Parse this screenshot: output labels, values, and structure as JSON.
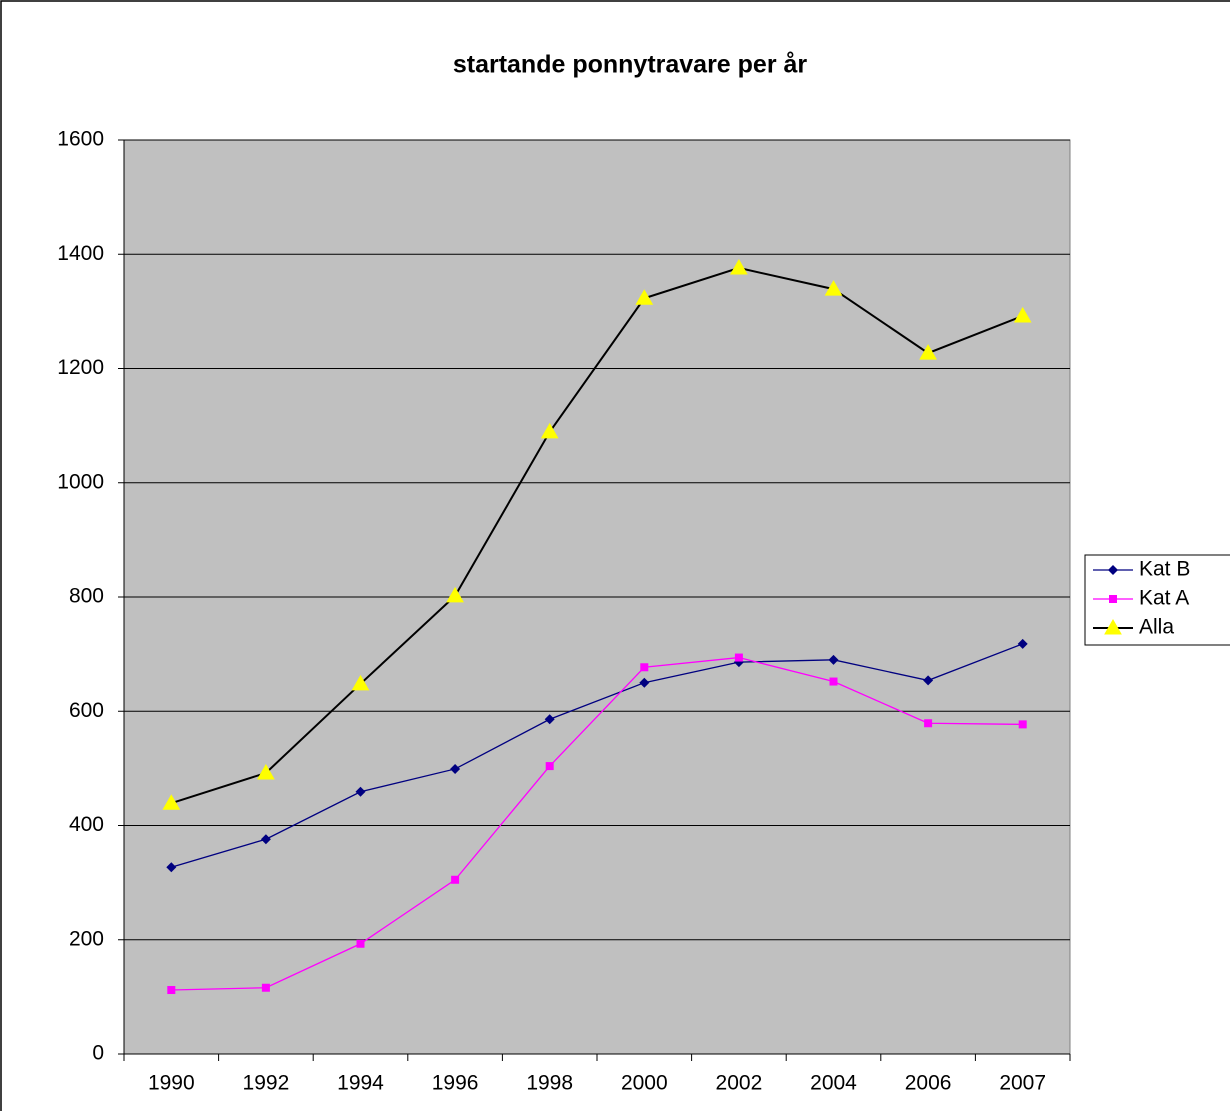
{
  "chart_data": {
    "type": "line",
    "title": "startande ponnytravare per år",
    "categories": [
      "1990",
      "1992",
      "1994",
      "1996",
      "1998",
      "2000",
      "2002",
      "2004",
      "2006",
      "2007"
    ],
    "series": [
      {
        "name": "Kat B",
        "color": "#000080",
        "marker": "diamond",
        "values": [
          327,
          376,
          459,
          499,
          586,
          650,
          686,
          690,
          654,
          718
        ]
      },
      {
        "name": "Kat A",
        "color": "#ff00ff",
        "marker": "square",
        "values": [
          112,
          116,
          193,
          305,
          504,
          677,
          694,
          652,
          579,
          577
        ]
      },
      {
        "name": "Alla",
        "color": "#000000",
        "marker": "triangle",
        "marker_color": "#ffff00",
        "values": [
          439,
          492,
          648,
          802,
          1089,
          1323,
          1376,
          1339,
          1227,
          1292
        ]
      }
    ],
    "ylim": [
      0,
      1600
    ],
    "yticks": [
      0,
      200,
      400,
      600,
      800,
      1000,
      1200,
      1400,
      1600
    ],
    "grid": true,
    "legend": "right"
  }
}
